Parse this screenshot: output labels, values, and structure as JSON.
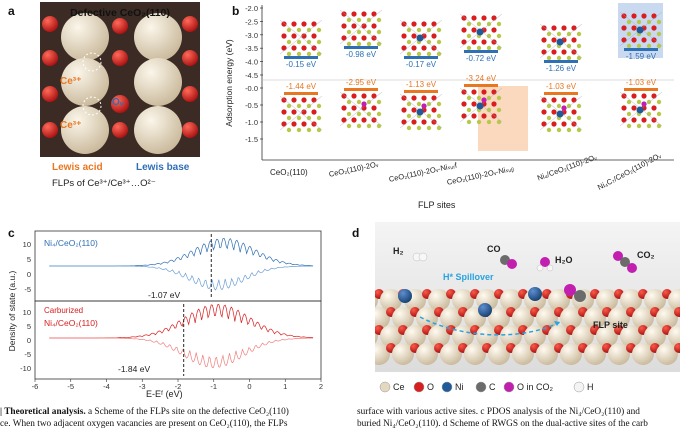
{
  "panel_a": {
    "letter": "a",
    "title": "Defective CeO₂(110)",
    "atom_labels": [
      "Ce³⁺",
      "Ce³⁺"
    ],
    "ov_label": "Oᵥ",
    "lewis_acid": "Lewis acid",
    "lewis_base": "Lewis base",
    "subtitle": "FLPs of Ce³⁺/Ce³⁺…O²⁻",
    "colors": {
      "bg": "#3a2a24",
      "ce": "#e8dcc8",
      "o": "#d81e1e",
      "acid": "#e87722",
      "base": "#2f6fb5"
    }
  },
  "panel_b": {
    "letter": "b",
    "ylabel": "Adsorption energy (eV)",
    "xlabel": "FLP sites",
    "yticks": [
      "-2.0",
      "-2.5",
      "-3.0",
      "-3.5",
      "-4.0",
      "-4.5",
      "-0.0",
      "-0.5",
      "-1.0",
      "-1.5"
    ],
    "sites": [
      {
        "label": "CeO₂(110)",
        "top": "-0.15 eV",
        "bottom": "-1.44 eV"
      },
      {
        "label": "CeO₂(110)-2Oᵥ",
        "top": "-0.98 eV",
        "bottom": "-2.95 eV"
      },
      {
        "label": "CeO₂(110)-2Oᵥ-Niₛᵤᵣf",
        "top": "-0.17 eV",
        "bottom": "-1.13 eV"
      },
      {
        "label": "CeO₂(110)-2Oᵥ-Niₛᵤᵦ",
        "top": "-0.72 eV",
        "bottom": "-3.24 eV"
      },
      {
        "label": "Ni₄/CeO₂(110)-2Oᵥ",
        "top": "-1.26 eV",
        "bottom": "-1.03 eV"
      },
      {
        "label": "Ni₄C₇/CeO₂(110)-2Oᵥ",
        "top": "-1.59 eV",
        "bottom": "-1.03 eV"
      }
    ],
    "colors": {
      "top_bar": "#2f6fb5",
      "bottom_bar": "#e87722",
      "highlight_blue": "#c9d9f0",
      "highlight_orange": "#fbd9bf"
    }
  },
  "panel_c": {
    "letter": "c",
    "top_label": "Ni₄/CeO₂(110)",
    "top_value": "-1.07 eV",
    "bottom_label_1": "Carburized",
    "bottom_label_2": "Ni₄/CeO₂(110)",
    "bottom_value": "-1.84 eV",
    "ylabel": "Density of state (a.u.)",
    "xlabel": "E-Eᶠ (eV)",
    "xticks": [
      "-6",
      "-5",
      "-4",
      "-3",
      "-2",
      "-1",
      "0",
      "1",
      "2"
    ],
    "yticks_top": [
      "10",
      "5",
      "0",
      "-5"
    ],
    "yticks_bottom": [
      "10",
      "5",
      "0",
      "-5",
      "-10"
    ],
    "colors": {
      "top": "#2f6fb5",
      "bottom": "#d81e1e"
    }
  },
  "panel_d": {
    "letter": "d",
    "molecules": [
      "H₂",
      "CO",
      "H₂O",
      "CO₂"
    ],
    "spillover": "H* Spillover",
    "flp_site": "FLP site",
    "legend": [
      "Ce",
      "O",
      "Ni",
      "C",
      "O in CO₂",
      "H"
    ],
    "colors": {
      "ce": "#e5d8c0",
      "o": "#d81e1e",
      "ni": "#1f5a9a",
      "c": "#6b6b6b",
      "oco2": "#c21fb0",
      "h": "#f4f4f4",
      "spill": "#29a3e0"
    }
  },
  "caption": {
    "left_bold": "| Theoretical analysis.",
    "left_1": " a Scheme of the FLPs site on the defective CeO₂(110)",
    "left_2": "ce. When two adjacent oxygen vacancies are present on CeO₂(110), the FLPs",
    "right_1": "surface with various active sites. c PDOS analysis of the Ni₄/CeO₂(110) and",
    "right_2": "buried Ni₄/CeO₂(110). d Scheme of RWGS on the dual-active sites of the carb"
  }
}
